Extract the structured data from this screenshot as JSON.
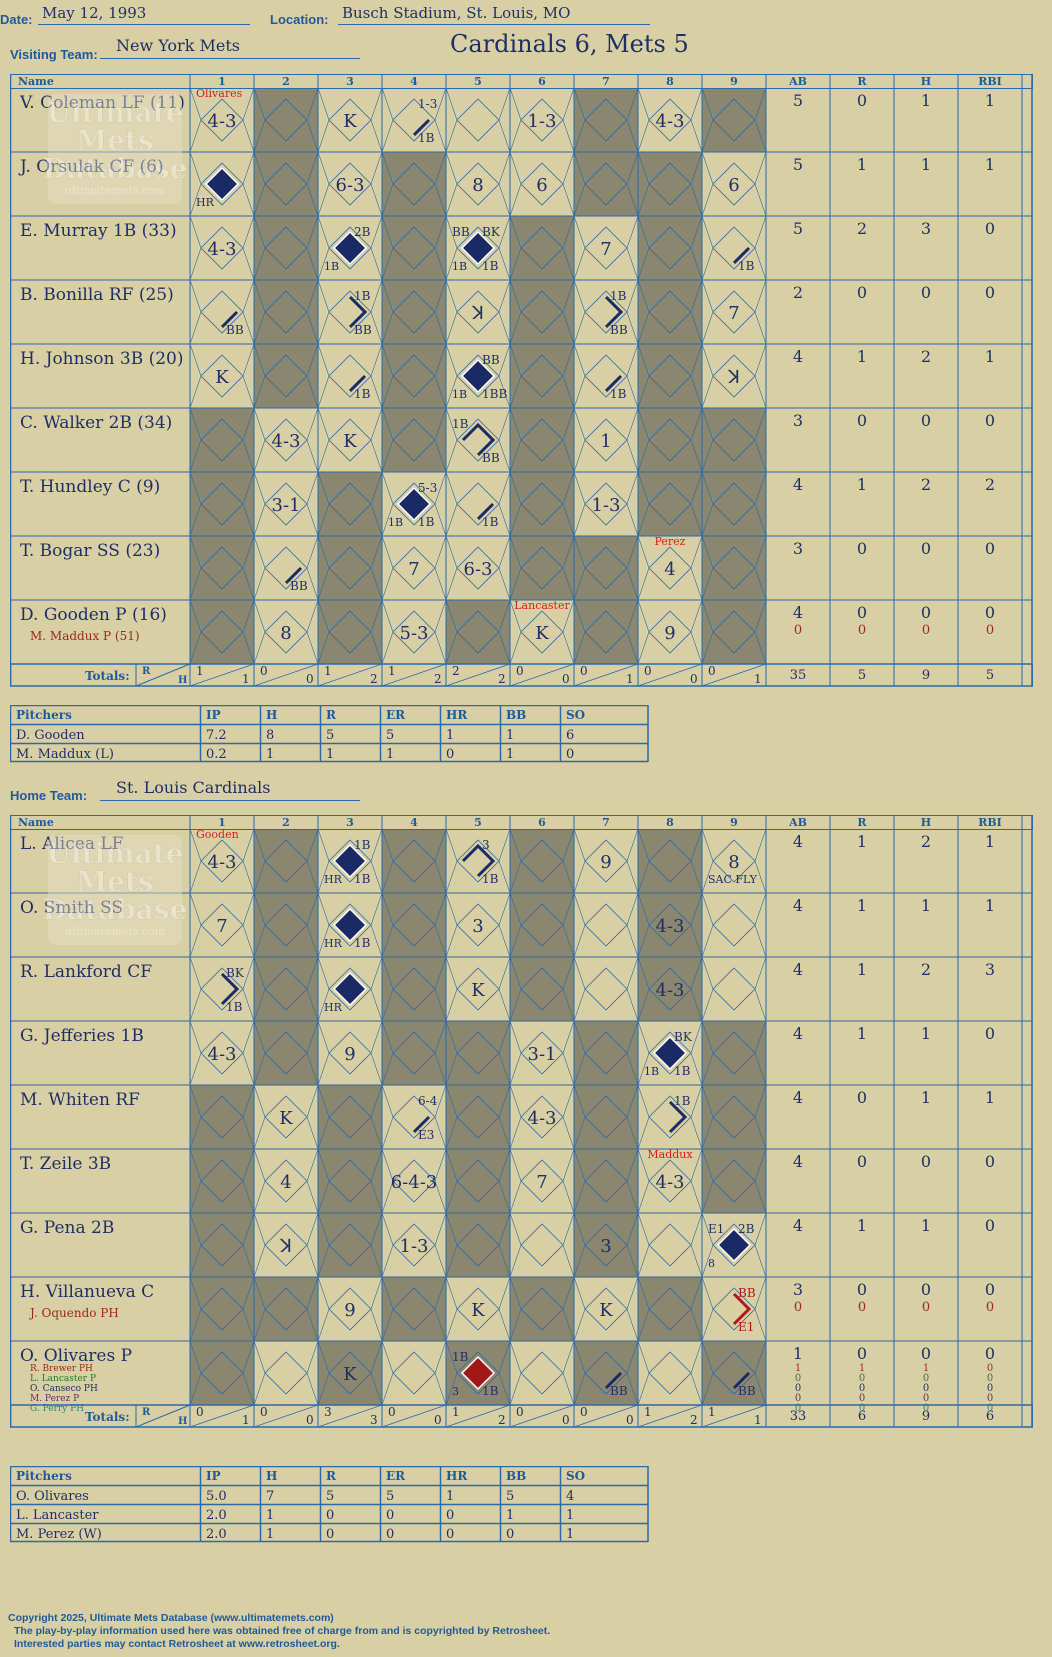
{
  "header": {
    "date_label": "Date:",
    "date": "May 12, 1993",
    "location_label": "Location:",
    "location": "Busch Stadium, St. Louis, MO",
    "visiting_label": "Visiting Team:",
    "visiting_team": "New York Mets",
    "home_label": "Home Team:",
    "home_team": "St. Louis Cardinals",
    "result": "Cardinals 6, Mets 5"
  },
  "columns": {
    "name": "Name",
    "innings": [
      "1",
      "2",
      "3",
      "4",
      "5",
      "6",
      "7",
      "8",
      "9"
    ],
    "stats": [
      "AB",
      "R",
      "H",
      "RBI"
    ],
    "totals_label": "Totals:",
    "r_label": "R",
    "h_label": "H"
  },
  "watermark": {
    "line1": "Ultimate",
    "line2": "Mets",
    "line3": "Database",
    "url": "ultimatemets.com"
  },
  "visitors": {
    "rows": [
      {
        "name": "V. Coleman LF (11)",
        "subs": [],
        "shade": [
          0,
          1,
          0,
          0,
          0,
          0,
          1,
          0,
          1
        ],
        "cells": [
          {
            "t": "4-3"
          },
          {},
          {
            "t": "K"
          },
          {
            "ann": {
              "tr": "1-3",
              "br": "1B"
            },
            "p": 1
          },
          {},
          {
            "t": "1-3"
          },
          {},
          {
            "t": "4-3"
          },
          {}
        ],
        "stats": [
          "5",
          "0",
          "1",
          "1"
        ],
        "subStats": []
      },
      {
        "name": "J. Orsulak CF (6)",
        "subs": [],
        "shade": [
          0,
          1,
          0,
          1,
          0,
          0,
          1,
          1,
          0
        ],
        "cells": [
          {
            "d": 1,
            "ann": {
              "bl": "HR"
            }
          },
          {},
          {
            "t": "6-3"
          },
          {},
          {
            "t": "8"
          },
          {
            "t": "6"
          },
          {},
          {},
          {
            "t": "6"
          }
        ],
        "stats": [
          "5",
          "1",
          "1",
          "1"
        ],
        "subStats": []
      },
      {
        "name": "E. Murray 1B (33)",
        "subs": [],
        "shade": [
          0,
          1,
          0,
          1,
          0,
          1,
          0,
          1,
          0
        ],
        "cells": [
          {
            "t": "4-3"
          },
          {},
          {
            "d": 1,
            "ann": {
              "tr": "2B",
              "bl": "1B"
            }
          },
          {},
          {
            "d": 1,
            "ann": {
              "tl": "BB",
              "tr": "BK",
              "bl": "1B",
              "br": "1B"
            }
          },
          {},
          {
            "t": "7"
          },
          {},
          {
            "p": 1,
            "ann": {
              "br": "1B"
            }
          }
        ],
        "stats": [
          "5",
          "2",
          "3",
          "0"
        ],
        "subStats": []
      },
      {
        "name": "B. Bonilla RF (25)",
        "subs": [],
        "shade": [
          0,
          1,
          0,
          1,
          0,
          1,
          0,
          1,
          0
        ],
        "cells": [
          {
            "p": 1,
            "ann": {
              "br": "BB"
            }
          },
          {},
          {
            "p": 2,
            "ann": {
              "tr": "1B",
              "br": "BB"
            }
          },
          {},
          {
            "t": "ꓘ"
          },
          {},
          {
            "p": 2,
            "ann": {
              "tr": "1B",
              "br": "BB"
            }
          },
          {},
          {
            "t": "7"
          }
        ],
        "stats": [
          "2",
          "0",
          "0",
          "0"
        ],
        "subStats": []
      },
      {
        "name": "H. Johnson 3B (20)",
        "subs": [],
        "shade": [
          0,
          1,
          0,
          1,
          0,
          1,
          0,
          1,
          0
        ],
        "cells": [
          {
            "t": "K"
          },
          {},
          {
            "p": 1,
            "ann": {
              "br": "1B"
            }
          },
          {},
          {
            "d": 1,
            "ann": {
              "tr": "BB",
              "bl": "1B",
              "br": "1BB"
            }
          },
          {},
          {
            "p": 1,
            "ann": {
              "br": "1B"
            }
          },
          {},
          {
            "t": "ꓘ"
          }
        ],
        "stats": [
          "4",
          "1",
          "2",
          "1"
        ],
        "subStats": []
      },
      {
        "name": "C. Walker 2B (34)",
        "subs": [],
        "shade": [
          1,
          0,
          0,
          1,
          0,
          1,
          0,
          1,
          1
        ],
        "cells": [
          {},
          {
            "t": "4-3"
          },
          {
            "t": "K"
          },
          {},
          {
            "p": 3,
            "ann": {
              "tl": "1B",
              "br": "BB"
            }
          },
          {},
          {
            "t": "1"
          },
          {},
          {}
        ],
        "stats": [
          "3",
          "0",
          "0",
          "0"
        ],
        "subStats": []
      },
      {
        "name": "T. Hundley C (9)",
        "subs": [],
        "shade": [
          1,
          0,
          1,
          0,
          0,
          1,
          0,
          1,
          1
        ],
        "cells": [
          {},
          {
            "t": "3-1"
          },
          {},
          {
            "d": 1,
            "ann": {
              "tr": "5-3",
              "bl": "1B",
              "br": "1B"
            }
          },
          {
            "p": 1,
            "ann": {
              "br": "1B"
            }
          },
          {},
          {
            "t": "1-3"
          },
          {},
          {}
        ],
        "stats": [
          "4",
          "1",
          "2",
          "2"
        ],
        "subStats": []
      },
      {
        "name": "T. Bogar SS (23)",
        "subs": [],
        "shade": [
          1,
          0,
          1,
          0,
          0,
          1,
          1,
          0,
          1
        ],
        "cells": [
          {},
          {
            "p": 1,
            "ann": {
              "br": "BB"
            }
          },
          {},
          {
            "t": "7"
          },
          {
            "t": "6-3"
          },
          {},
          {},
          {
            "t": "4",
            "red": "Perez"
          },
          {}
        ],
        "stats": [
          "3",
          "0",
          "0",
          "0"
        ],
        "subStats": []
      },
      {
        "name": "D. Gooden P (16)",
        "subs": [
          {
            "n": "M. Maddux P (51)",
            "c": "#9a2a1a"
          }
        ],
        "shade": [
          1,
          0,
          1,
          0,
          1,
          0,
          1,
          0,
          1
        ],
        "cells": [
          {},
          {
            "t": "8"
          },
          {},
          {
            "t": "5-3"
          },
          {},
          {
            "t": "K",
            "red": "Lancaster"
          },
          {},
          {
            "t": "9"
          },
          {}
        ],
        "stats": [
          "4",
          "0",
          "0",
          "0"
        ],
        "subStats": [
          [
            "0",
            "0",
            "0",
            "0"
          ]
        ]
      }
    ],
    "first_sub": {
      "col": 0,
      "text": "Olivares"
    },
    "totals": [
      [
        "1",
        "1"
      ],
      [
        "0",
        "0"
      ],
      [
        "1",
        "2"
      ],
      [
        "1",
        "2"
      ],
      [
        "2",
        "2"
      ],
      [
        "0",
        "0"
      ],
      [
        "0",
        "1"
      ],
      [
        "0",
        "0"
      ],
      [
        "0",
        "1"
      ]
    ],
    "stat_totals": [
      "35",
      "5",
      "9",
      "5"
    ]
  },
  "visitor_pitchers": {
    "headers": [
      "Pitchers",
      "IP",
      "H",
      "R",
      "ER",
      "HR",
      "BB",
      "SO"
    ],
    "rows": [
      [
        "D. Gooden",
        "7.2",
        "8",
        "5",
        "5",
        "1",
        "1",
        "6"
      ],
      [
        "M. Maddux (L)",
        "0.2",
        "1",
        "1",
        "1",
        "0",
        "1",
        "0"
      ]
    ]
  },
  "home": {
    "rows": [
      {
        "name": "L. Alicea LF",
        "subs": [],
        "shade": [
          0,
          1,
          0,
          1,
          0,
          1,
          0,
          1,
          0
        ],
        "cells": [
          {
            "t": "4-3"
          },
          {},
          {
            "d": 1,
            "ann": {
              "tr": "1B",
              "bl": "HR",
              "br": "1B"
            }
          },
          {},
          {
            "p": 3,
            "ann": {
              "tr": "3",
              "br": "1B"
            }
          },
          {},
          {
            "t": "9"
          },
          {},
          {
            "t": "8",
            "ann": {
              "bl": "SAC FLY"
            }
          }
        ],
        "stats": [
          "4",
          "1",
          "2",
          "1"
        ],
        "subStats": []
      },
      {
        "name": "O. Smith SS",
        "subs": [],
        "shade": [
          0,
          1,
          0,
          1,
          0,
          1,
          0,
          1,
          0
        ],
        "cells": [
          {
            "t": "7"
          },
          {},
          {
            "d": 1,
            "ann": {
              "bl": "HR",
              "br": "1B"
            }
          },
          {},
          {
            "t": "3"
          },
          {},
          {},
          {
            "t": "4-3"
          },
          {}
        ],
        "stats": [
          "4",
          "1",
          "1",
          "1"
        ],
        "subStats": []
      },
      {
        "name": "R. Lankford CF",
        "subs": [],
        "shade": [
          0,
          1,
          0,
          1,
          0,
          1,
          0,
          1,
          0
        ],
        "cells": [
          {
            "p": 2,
            "ann": {
              "tr": "BK",
              "br": "1B"
            }
          },
          {},
          {
            "d": 1,
            "ann": {
              "bl": "HR"
            }
          },
          {},
          {
            "t": "K"
          },
          {},
          {},
          {
            "t": "4-3"
          },
          {}
        ],
        "stats": [
          "4",
          "1",
          "2",
          "3"
        ],
        "subStats": []
      },
      {
        "name": "G. Jefferies 1B",
        "subs": [],
        "shade": [
          0,
          1,
          0,
          1,
          1,
          0,
          1,
          0,
          1
        ],
        "cells": [
          {
            "t": "4-3"
          },
          {},
          {
            "t": "9"
          },
          {},
          {},
          {
            "t": "3-1"
          },
          {},
          {
            "d": 1,
            "ann": {
              "tr": "BK",
              "bl": "1B",
              "br": "1B"
            }
          },
          {}
        ],
        "stats": [
          "4",
          "1",
          "1",
          "0"
        ],
        "subStats": []
      },
      {
        "name": "M. Whiten RF",
        "subs": [],
        "shade": [
          1,
          0,
          1,
          0,
          1,
          0,
          1,
          0,
          1
        ],
        "cells": [
          {},
          {
            "t": "K"
          },
          {},
          {
            "p": 1,
            "ann": {
              "tr": "6-4",
              "br": "E3"
            }
          },
          {},
          {
            "t": "4-3"
          },
          {},
          {
            "p": 2,
            "ann": {
              "tr": "1B"
            }
          },
          {}
        ],
        "stats": [
          "4",
          "0",
          "1",
          "1"
        ],
        "subStats": []
      },
      {
        "name": "T. Zeile 3B",
        "subs": [],
        "shade": [
          1,
          0,
          1,
          0,
          1,
          0,
          1,
          0,
          1
        ],
        "cells": [
          {},
          {
            "t": "4"
          },
          {},
          {
            "t": "6-4-3"
          },
          {},
          {
            "t": "7"
          },
          {},
          {
            "t": "4-3",
            "red": "Maddux"
          },
          {}
        ],
        "stats": [
          "4",
          "0",
          "0",
          "0"
        ],
        "subStats": []
      },
      {
        "name": "G. Pena 2B",
        "subs": [],
        "shade": [
          1,
          0,
          1,
          0,
          1,
          0,
          1,
          0,
          0
        ],
        "cells": [
          {},
          {
            "t": "ꓘ"
          },
          {},
          {
            "t": "1-3"
          },
          {},
          {},
          {
            "t": "3"
          },
          {},
          {
            "d": 1,
            "ann": {
              "tl": "E1",
              "tr": "2B",
              "bl": "8"
            }
          }
        ],
        "stats": [
          "4",
          "1",
          "1",
          "0"
        ],
        "subStats": []
      },
      {
        "name": "H. Villanueva C",
        "subs": [
          {
            "n": "J. Oquendo PH",
            "c": "#9a2a1a"
          }
        ],
        "shade": [
          1,
          1,
          0,
          1,
          0,
          1,
          0,
          1,
          0
        ],
        "cells": [
          {},
          {},
          {
            "t": "9"
          },
          {},
          {
            "t": "K"
          },
          {},
          {
            "t": "K"
          },
          {},
          {
            "p": 2,
            "red2": 1,
            "ann": {
              "tr": "BB",
              "br": "E1"
            }
          }
        ],
        "stats": [
          "3",
          "0",
          "0",
          "0"
        ],
        "subStats": [
          [
            "0",
            "0",
            "0",
            "0"
          ]
        ]
      },
      {
        "name": "O. Olivares P",
        "subs": [
          {
            "n": "R. Brewer PH",
            "c": "#9a2a1a"
          },
          {
            "n": "L. Lancaster P",
            "c": "#2a7a2a"
          },
          {
            "n": "O. Canseco PH",
            "c": "#1f2f66"
          },
          {
            "n": "M. Perez P",
            "c": "#6a2a6a"
          },
          {
            "n": "G. Perry PH",
            "c": "#2a8a7a"
          }
        ],
        "shade": [
          1,
          0,
          1,
          0,
          1,
          0,
          1,
          0,
          1
        ],
        "cells": [
          {},
          {},
          {
            "t": "K"
          },
          {},
          {
            "d": 2,
            "ann": {
              "tl": "1B",
              "bl": "3",
              "br": "1B"
            }
          },
          {},
          {
            "p": 1,
            "ann": {
              "br": "BB"
            }
          },
          {},
          {
            "p": 1,
            "ann": {
              "br": "BB"
            }
          }
        ],
        "stats": [
          "1",
          "0",
          "0",
          "0"
        ],
        "subStats": [
          [
            "1",
            "1",
            "1",
            "0"
          ],
          [
            "0",
            "0",
            "0",
            "0"
          ],
          [
            "0",
            "0",
            "0",
            "0"
          ],
          [
            "0",
            "0",
            "0",
            "0"
          ],
          [
            "0",
            "0",
            "0",
            "0"
          ]
        ]
      }
    ],
    "first_sub": {
      "col": 0,
      "text": "Gooden"
    },
    "totals": [
      [
        "0",
        "1"
      ],
      [
        "0",
        "0"
      ],
      [
        "3",
        "3"
      ],
      [
        "0",
        "0"
      ],
      [
        "1",
        "2"
      ],
      [
        "0",
        "0"
      ],
      [
        "0",
        "0"
      ],
      [
        "1",
        "2"
      ],
      [
        "1",
        "1"
      ]
    ],
    "stat_totals": [
      "33",
      "6",
      "9",
      "6"
    ]
  },
  "home_pitchers": {
    "headers": [
      "Pitchers",
      "IP",
      "H",
      "R",
      "ER",
      "HR",
      "BB",
      "SO"
    ],
    "rows": [
      [
        "O. Olivares",
        "5.0",
        "7",
        "5",
        "5",
        "1",
        "5",
        "4"
      ],
      [
        "L. Lancaster",
        "2.0",
        "1",
        "0",
        "0",
        "0",
        "1",
        "1"
      ],
      [
        "M. Perez (W)",
        "2.0",
        "1",
        "0",
        "0",
        "0",
        "0",
        "1"
      ]
    ]
  },
  "footer": {
    "line1": "Copyright 2025, Ultimate Mets Database (www.ultimatemets.com)",
    "line2": "The play-by-play information used here was obtained free of charge from and is copyrighted by Retrosheet.",
    "line3": "Interested parties may contact Retrosheet at www.retrosheet.org."
  },
  "colors": {
    "grid": "#2a6aa8",
    "shade": "#8a8670",
    "ink": "#1f2f66",
    "diamond": "#1a2a66",
    "red": "#d42020",
    "bg": "#d9cfa4"
  }
}
